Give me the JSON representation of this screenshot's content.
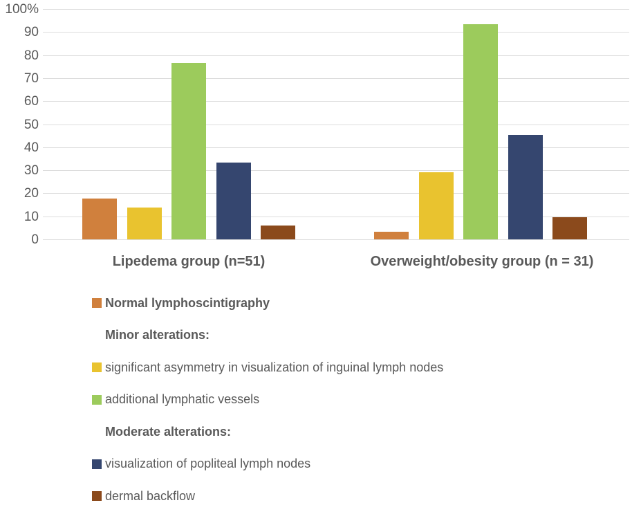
{
  "chart_data": {
    "type": "bar",
    "title": "",
    "xlabel": "",
    "ylabel": "%",
    "ylim": [
      0,
      100
    ],
    "grid": true,
    "yticks": [
      {
        "label": "100%",
        "value": 100
      },
      {
        "label": "90",
        "value": 90
      },
      {
        "label": "80",
        "value": 80
      },
      {
        "label": "70",
        "value": 70
      },
      {
        "label": "60",
        "value": 60
      },
      {
        "label": "50",
        "value": 50
      },
      {
        "label": "40",
        "value": 40
      },
      {
        "label": "30",
        "value": 30
      },
      {
        "label": "20",
        "value": 20
      },
      {
        "label": "10",
        "value": 10
      },
      {
        "label": "0",
        "value": 0
      }
    ],
    "categories": [
      "Lipedema group (n=51)",
      "Overweight/obesity group (n = 31)"
    ],
    "series": [
      {
        "name": "Normal lymphoscintigraphy",
        "color": "#d0803d",
        "values": [
          17.6,
          3.2
        ]
      },
      {
        "name": "significant asymmetry in visualization of inguinal lymph nodes",
        "color": "#e9c32f",
        "values": [
          13.7,
          29.0
        ]
      },
      {
        "name": "additional lymphatic vessels",
        "color": "#9ccb5c",
        "values": [
          76.5,
          93.5
        ]
      },
      {
        "name": "visualization of popliteal lymph nodes",
        "color": "#35466f",
        "values": [
          33.3,
          45.2
        ]
      },
      {
        "name": "dermal backflow",
        "color": "#8b4a1c",
        "values": [
          5.9,
          9.7
        ]
      }
    ],
    "legend_position": "bottom-left"
  },
  "legend": {
    "items": [
      {
        "swatch": "#d0803d",
        "label": "Normal lymphoscintigraphy",
        "bold": true
      },
      {
        "swatch": null,
        "label": "Minor alterations:",
        "bold": true
      },
      {
        "swatch": "#e9c32f",
        "label": "significant asymmetry in visualization of inguinal lymph nodes",
        "bold": false
      },
      {
        "swatch": "#9ccb5c",
        "label": "additional lymphatic vessels",
        "bold": false
      },
      {
        "swatch": null,
        "label": "Moderate alterations:",
        "bold": true
      },
      {
        "swatch": "#35466f",
        "label": "visualization of popliteal lymph nodes",
        "bold": false
      },
      {
        "swatch": "#8b4a1c",
        "label": "dermal backflow",
        "bold": false
      }
    ]
  },
  "colors": {
    "text": "#595959",
    "gridline": "#dcdcdc",
    "background": "#ffffff"
  }
}
